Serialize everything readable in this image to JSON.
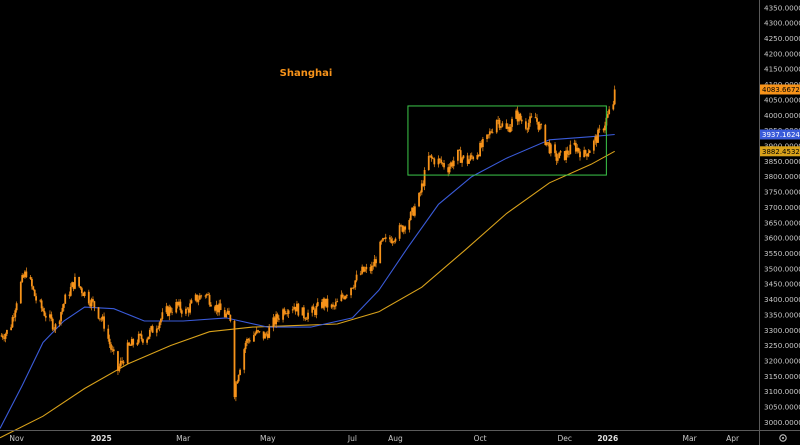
{
  "chart_data": {
    "type": "candlestick",
    "title": "Shanghai",
    "colors": {
      "background": "#000000",
      "candles": "#f7931a",
      "ma_fast": "#3a5bd9",
      "ma_slow": "#d9a21b",
      "box": "#3cc84a",
      "axis_text": "#c8c8c8",
      "axis_line": "#5a5a5a"
    },
    "y_axis": {
      "min": 2975,
      "max": 4375,
      "ticks": [
        "3000.00000",
        "3050.00000",
        "3100.00000",
        "3150.00000",
        "3200.00000",
        "3250.00000",
        "3300.00000",
        "3350.00000",
        "3400.00000",
        "3450.00000",
        "3500.00000",
        "3550.00000",
        "3600.00000",
        "3650.00000",
        "3700.00000",
        "3750.00000",
        "3800.00000",
        "3850.00000",
        "3900.00000",
        "3950.00000",
        "4000.00000",
        "4050.00000",
        "4100.00000",
        "4150.00000",
        "4200.00000",
        "4250.00000",
        "4300.00000",
        "4350.00000"
      ]
    },
    "x_axis": {
      "start": "2024-10-20",
      "end": "2026-04-20",
      "ticks": [
        {
          "label": "Nov",
          "date": "2024-11-01",
          "bold": false
        },
        {
          "label": "2025",
          "date": "2025-01-01",
          "bold": true
        },
        {
          "label": "Mar",
          "date": "2025-03-01",
          "bold": false
        },
        {
          "label": "May",
          "date": "2025-05-01",
          "bold": false
        },
        {
          "label": "Jul",
          "date": "2025-07-01",
          "bold": false
        },
        {
          "label": "Aug",
          "date": "2025-08-01",
          "bold": false
        },
        {
          "label": "Oct",
          "date": "2025-10-01",
          "bold": false
        },
        {
          "label": "Dec",
          "date": "2025-12-01",
          "bold": false
        },
        {
          "label": "2026",
          "date": "2026-01-01",
          "bold": true
        },
        {
          "label": "Mar",
          "date": "2026-03-01",
          "bold": false
        },
        {
          "label": "Apr",
          "date": "2026-04-01",
          "bold": false
        }
      ]
    },
    "price_labels": [
      {
        "text": "4083.66720",
        "value": 4083.6672,
        "bg": "#f7931a",
        "fg": "#000000"
      },
      {
        "text": "3937.16240",
        "value": 3937.1624,
        "bg": "#3a5bd9",
        "fg": "#ffffff"
      },
      {
        "text": "3882.45320",
        "value": 3882.4532,
        "bg": "#d9a21b",
        "fg": "#000000"
      }
    ],
    "consolidation_box": {
      "start": "2025-08-10",
      "end": "2025-12-31",
      "low": 3805,
      "high": 4030
    },
    "price_path": [
      [
        "2024-10-20",
        3280
      ],
      [
        "2024-10-27",
        3300
      ],
      [
        "2024-11-03",
        3440
      ],
      [
        "2024-11-08",
        3490
      ],
      [
        "2024-11-15",
        3400
      ],
      [
        "2024-11-22",
        3350
      ],
      [
        "2024-11-29",
        3310
      ],
      [
        "2024-12-06",
        3400
      ],
      [
        "2024-12-13",
        3460
      ],
      [
        "2024-12-20",
        3420
      ],
      [
        "2024-12-27",
        3380
      ],
      [
        "2025-01-03",
        3320
      ],
      [
        "2025-01-08",
        3240
      ],
      [
        "2025-01-13",
        3170
      ],
      [
        "2025-01-20",
        3240
      ],
      [
        "2025-01-27",
        3270
      ],
      [
        "2025-02-03",
        3280
      ],
      [
        "2025-02-10",
        3320
      ],
      [
        "2025-02-17",
        3360
      ],
      [
        "2025-02-24",
        3380
      ],
      [
        "2025-03-03",
        3360
      ],
      [
        "2025-03-10",
        3400
      ],
      [
        "2025-03-17",
        3420
      ],
      [
        "2025-03-24",
        3380
      ],
      [
        "2025-03-31",
        3350
      ],
      [
        "2025-04-04",
        3340
      ],
      [
        "2025-04-07",
        3100
      ],
      [
        "2025-04-09",
        3150
      ],
      [
        "2025-04-15",
        3260
      ],
      [
        "2025-04-22",
        3290
      ],
      [
        "2025-04-29",
        3280
      ],
      [
        "2025-05-06",
        3330
      ],
      [
        "2025-05-13",
        3370
      ],
      [
        "2025-05-20",
        3380
      ],
      [
        "2025-05-27",
        3350
      ],
      [
        "2025-06-03",
        3360
      ],
      [
        "2025-06-10",
        3390
      ],
      [
        "2025-06-17",
        3370
      ],
      [
        "2025-06-24",
        3410
      ],
      [
        "2025-07-01",
        3450
      ],
      [
        "2025-07-08",
        3490
      ],
      [
        "2025-07-15",
        3500
      ],
      [
        "2025-07-22",
        3580
      ],
      [
        "2025-07-29",
        3600
      ],
      [
        "2025-08-05",
        3630
      ],
      [
        "2025-08-12",
        3670
      ],
      [
        "2025-08-18",
        3730
      ],
      [
        "2025-08-25",
        3860
      ],
      [
        "2025-09-01",
        3850
      ],
      [
        "2025-09-08",
        3830
      ],
      [
        "2025-09-15",
        3870
      ],
      [
        "2025-09-22",
        3850
      ],
      [
        "2025-09-29",
        3880
      ],
      [
        "2025-10-06",
        3920
      ],
      [
        "2025-10-13",
        3990
      ],
      [
        "2025-10-20",
        3950
      ],
      [
        "2025-10-27",
        4000
      ],
      [
        "2025-11-03",
        3970
      ],
      [
        "2025-11-10",
        3990
      ],
      [
        "2025-11-17",
        3920
      ],
      [
        "2025-11-24",
        3860
      ],
      [
        "2025-12-01",
        3870
      ],
      [
        "2025-12-08",
        3900
      ],
      [
        "2025-12-15",
        3870
      ],
      [
        "2025-12-22",
        3910
      ],
      [
        "2025-12-29",
        3965
      ],
      [
        "2026-01-05",
        4040
      ],
      [
        "2026-01-06",
        4083.6672
      ]
    ],
    "ma_fast": [
      [
        "2024-10-20",
        2980
      ],
      [
        "2024-11-05",
        3120
      ],
      [
        "2024-11-20",
        3260
      ],
      [
        "2024-12-05",
        3330
      ],
      [
        "2024-12-20",
        3375
      ],
      [
        "2025-01-10",
        3370
      ],
      [
        "2025-02-01",
        3330
      ],
      [
        "2025-03-01",
        3330
      ],
      [
        "2025-04-01",
        3340
      ],
      [
        "2025-05-01",
        3310
      ],
      [
        "2025-06-01",
        3310
      ],
      [
        "2025-07-01",
        3340
      ],
      [
        "2025-07-20",
        3430
      ],
      [
        "2025-08-10",
        3570
      ],
      [
        "2025-09-01",
        3710
      ],
      [
        "2025-09-25",
        3800
      ],
      [
        "2025-10-20",
        3860
      ],
      [
        "2025-11-20",
        3920
      ],
      [
        "2025-12-20",
        3930
      ],
      [
        "2026-01-06",
        3937.1624
      ]
    ],
    "ma_slow": [
      [
        "2024-10-20",
        2950
      ],
      [
        "2024-11-20",
        3020
      ],
      [
        "2024-12-20",
        3110
      ],
      [
        "2025-01-20",
        3190
      ],
      [
        "2025-02-20",
        3250
      ],
      [
        "2025-03-20",
        3295
      ],
      [
        "2025-04-20",
        3310
      ],
      [
        "2025-05-20",
        3315
      ],
      [
        "2025-06-20",
        3320
      ],
      [
        "2025-07-20",
        3360
      ],
      [
        "2025-08-20",
        3440
      ],
      [
        "2025-09-20",
        3560
      ],
      [
        "2025-10-20",
        3680
      ],
      [
        "2025-11-20",
        3780
      ],
      [
        "2025-12-20",
        3840
      ],
      [
        "2026-01-06",
        3882.4532
      ]
    ]
  }
}
